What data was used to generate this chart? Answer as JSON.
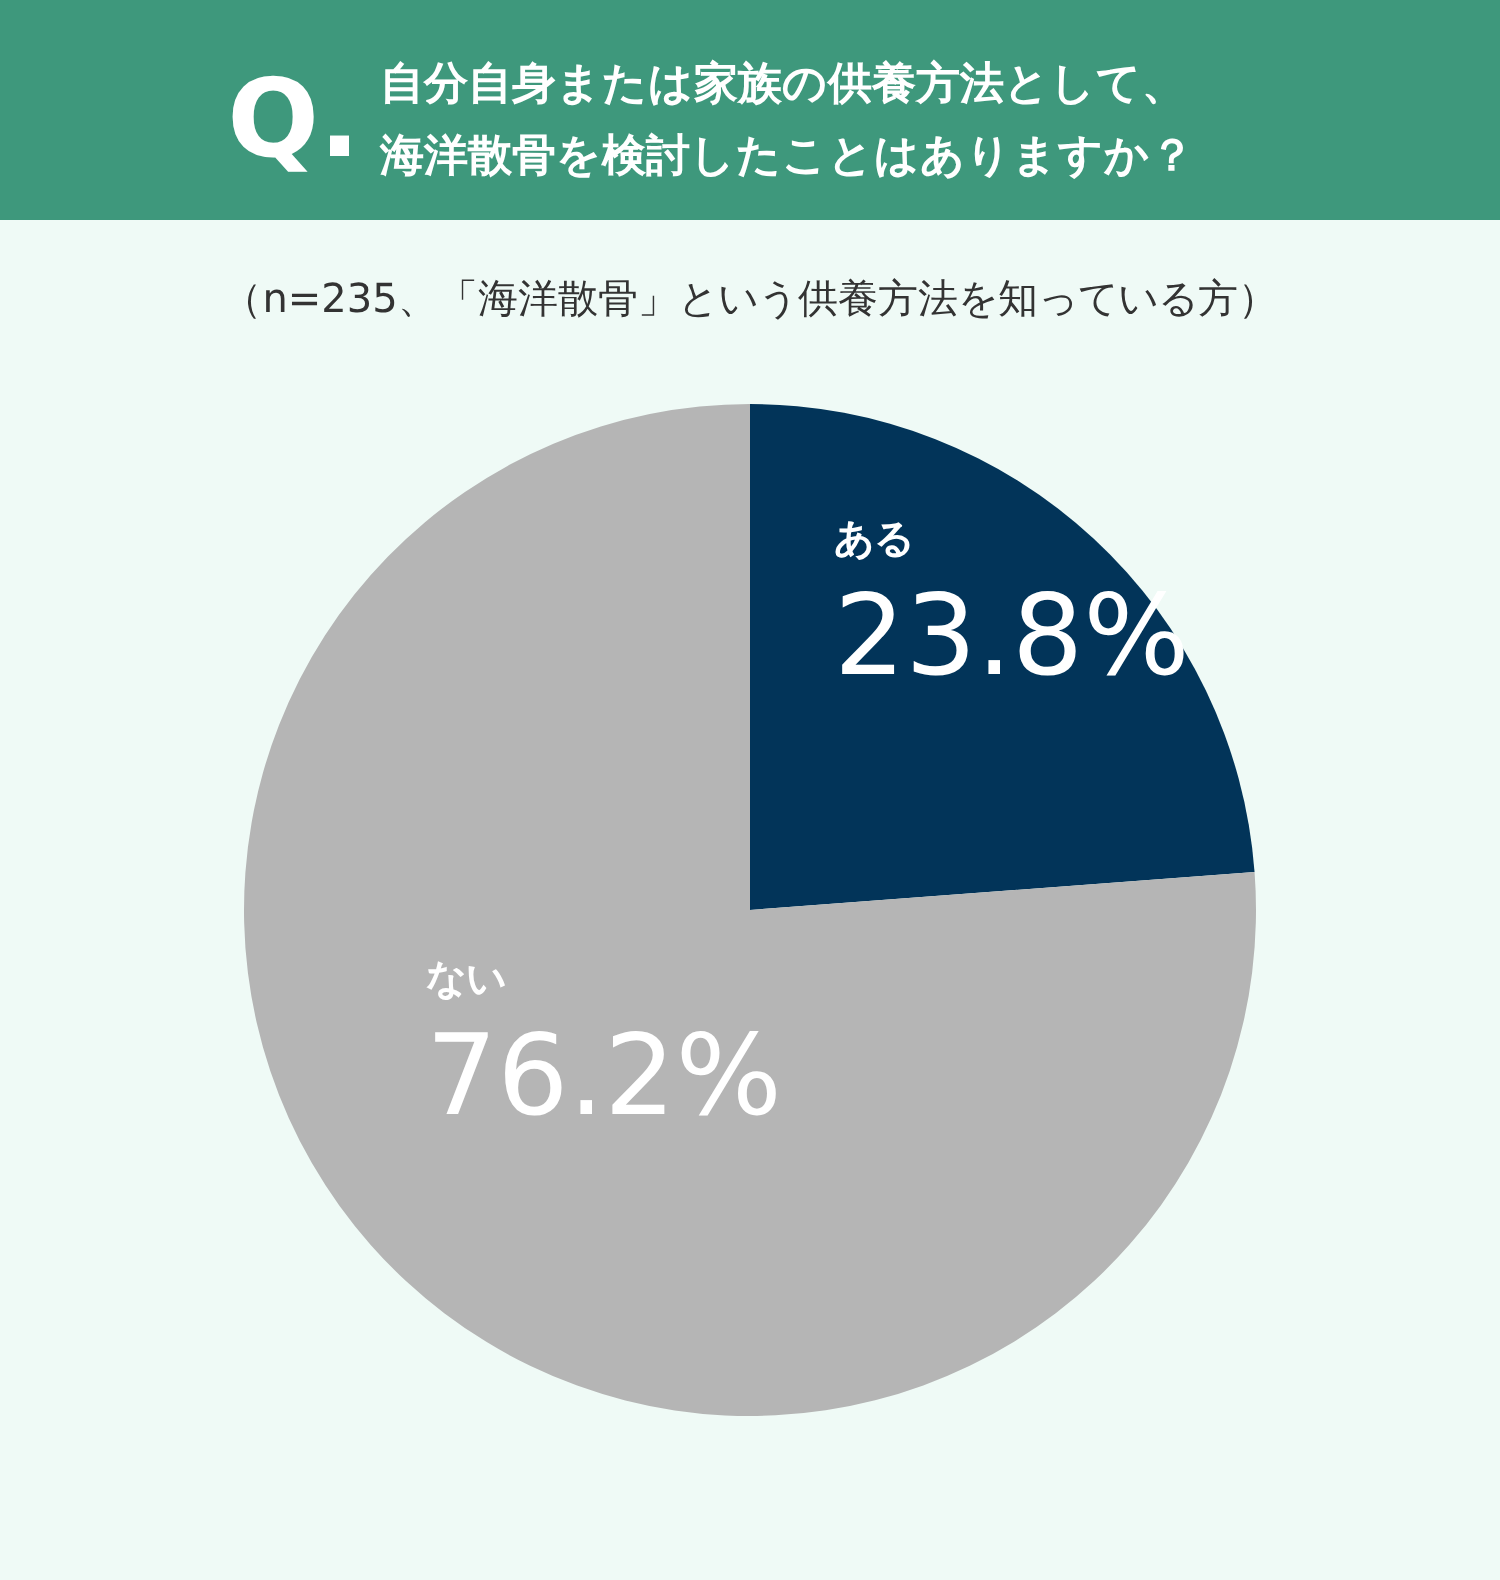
{
  "chart_data": {
    "type": "pie",
    "title": "自分自身または家族の供養方法として、海洋散骨を検討したことはありますか？",
    "subtitle": "（n=235、「海洋散骨」という供養方法を知っている方）",
    "annotations": [
      "Q."
    ],
    "categories": [
      "ある",
      "ない"
    ],
    "values": [
      23.8,
      76.2
    ],
    "colors": [
      "#023459",
      "#b5b5b5"
    ],
    "value_labels": [
      "23.8%",
      "76.2%"
    ]
  }
}
